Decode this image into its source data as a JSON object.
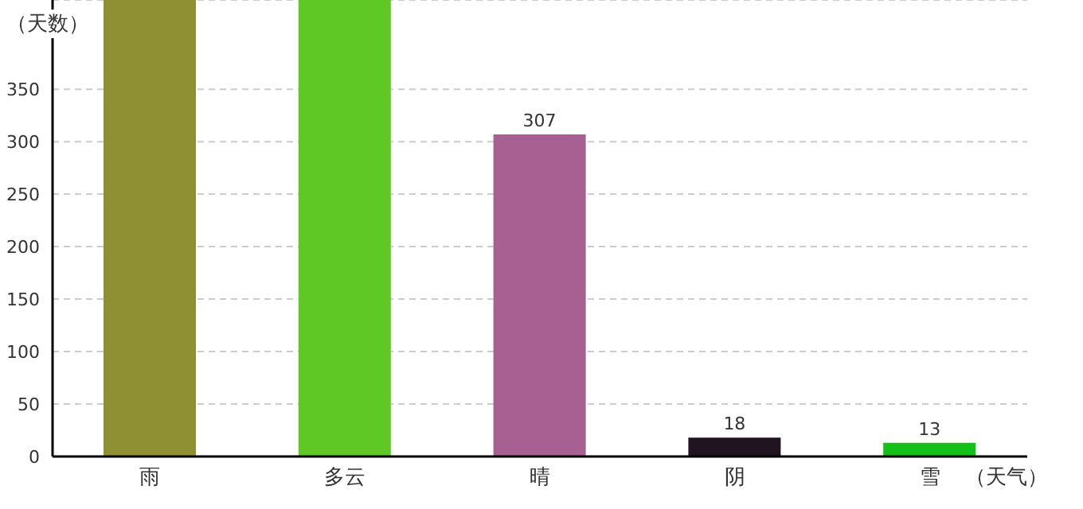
{
  "chart_data": {
    "type": "bar",
    "xlabel": "（天气）",
    "ylabel": "（天数）",
    "categories": [
      "雨",
      "多云",
      "晴",
      "阴",
      "雪"
    ],
    "values": [
      435,
      435,
      307,
      18,
      13
    ],
    "colors": [
      "#8f9034",
      "#60c825",
      "#a85f92",
      "#1f1420",
      "#12c018"
    ],
    "value_labels": [
      null,
      null,
      "307",
      "18",
      "13"
    ],
    "ylim": [
      0,
      435
    ],
    "yticks": [
      0,
      50,
      100,
      150,
      200,
      250,
      300,
      350
    ],
    "grid": "y"
  }
}
